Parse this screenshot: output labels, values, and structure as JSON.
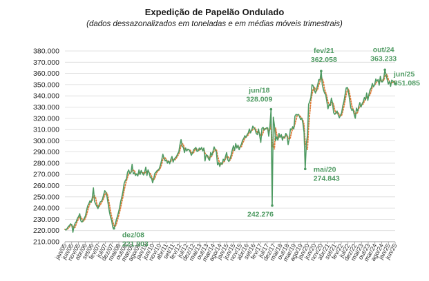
{
  "chart_data": {
    "type": "line",
    "title": "Expedição de Papelão Ondulado",
    "subtitle": "(dados dessazonalizados em toneladas e em médias móveis trimestrais)",
    "ylim": [
      210000,
      380000
    ],
    "yticks": [
      "210.000",
      "220.000",
      "230.000",
      "240.000",
      "250.000",
      "260.000",
      "270.000",
      "280.000",
      "290.000",
      "300.000",
      "310.000",
      "320.000",
      "330.000",
      "340.000",
      "350.000",
      "360.000",
      "370.000",
      "380.000"
    ],
    "grid": true,
    "legend": "none",
    "colors": {
      "series": "#4e9a62",
      "moving_average": "#e07b39",
      "annotation": "#4e9a62"
    },
    "x_labels": [
      "jan/05",
      "jun/05",
      "nov/05",
      "abr/06",
      "set/06",
      "fev/07",
      "jul/07",
      "dez/07",
      "mai/08",
      "out/08",
      "mar/09",
      "ago/09",
      "jan/10",
      "jun/10",
      "nov/10",
      "abr/11",
      "set/11",
      "fev/12",
      "jul/12",
      "dez/12",
      "mai/13",
      "out/13",
      "mar/14",
      "ago/14",
      "jan/15",
      "jun/15",
      "nov/15",
      "abr/16",
      "set/16",
      "fev/17",
      "jul/17",
      "dez/17",
      "mai/18",
      "out/18",
      "mar/19",
      "ago/19",
      "jan/20",
      "jun/20",
      "nov/20",
      "abr/21",
      "set/21",
      "fev/22",
      "jul/22",
      "dez/22",
      "mai/23",
      "out/23",
      "mar/24",
      "ago/24",
      "jan/25",
      "jun/25"
    ],
    "x_start": "jan/05",
    "x_end": "jun/25",
    "series": [
      {
        "values": [
          221000,
          220500,
          222000,
          223500,
          224500,
          226000,
          225000,
          218500,
          224000,
          226500,
          228000,
          231000,
          232500,
          235000,
          228500,
          227500,
          229000,
          231000,
          233000,
          238000,
          242000,
          244000,
          246500,
          245000,
          249000,
          258000,
          246000,
          243500,
          241500,
          239500,
          243000,
          245500,
          246000,
          248000,
          252000,
          255500,
          254000,
          250000,
          243500,
          237000,
          232000,
          229000,
          223000,
          221903,
          225000,
          229000,
          232500,
          236000,
          240500,
          246000,
          250000,
          255000,
          262000,
          264500,
          266000,
          272000,
          274000,
          270500,
          271500,
          279000,
          270500,
          271500,
          269000,
          270500,
          268500,
          274000,
          270000,
          273500,
          271000,
          269500,
          272000,
          276500,
          269000,
          274000,
          271500,
          267000,
          267000,
          262500,
          266500,
          271000,
          272000,
          273500,
          274000,
          275500,
          279000,
          283000,
          288000,
          284500,
          282000,
          283000,
          280000,
          282000,
          279500,
          283500,
          286000,
          281000,
          283500,
          285000,
          286000,
          288500,
          290000,
          296500,
          301000,
          295000,
          294000,
          289500,
          293500,
          291000,
          292500,
          292000,
          290000,
          287000,
          289000,
          292000,
          293000,
          294000,
          290500,
          291000,
          293500,
          292000,
          294000,
          291000,
          293500,
          282000,
          287500,
          287000,
          284000,
          282500,
          289500,
          287000,
          290500,
          294500,
          292000,
          290000,
          278500,
          280500,
          277000,
          280500,
          279000,
          283500,
          282000,
          286000,
          289500,
          283000,
          281500,
          284000,
          287500,
          292000,
          295500,
          291500,
          297500,
          293500,
          296000,
          292000,
          295000,
          297000,
          300500,
          302000,
          304500,
          303000,
          305500,
          307000,
          310500,
          307000,
          309500,
          313000,
          311500,
          310000,
          306500,
          305500,
          310500,
          304500,
          298500,
          311000,
          312000,
          309500,
          310500,
          311500,
          311500,
          304000,
          313000,
          328009,
          242276,
          321000,
          313500,
          300000,
          303500,
          300500,
          306500,
          303000,
          305500,
          300500,
          303500,
          303000,
          306500,
          305000,
          296500,
          301500,
          310500,
          310000,
          312500,
          310500,
          322000,
          323500,
          323000,
          323500,
          321500,
          319000,
          320000,
          315500,
          307500,
          274843,
          297000,
          305000,
          332500,
          335000,
          338500,
          350000,
          349000,
          345000,
          342500,
          346000,
          350000,
          354500,
          354000,
          362058,
          350000,
          345500,
          342500,
          341000,
          335000,
          328500,
          332500,
          331500,
          338000,
          333500,
          325000,
          323500,
          325000,
          326500,
          323000,
          320500,
          322500,
          325000,
          331000,
          335000,
          341000,
          347000,
          347500,
          343500,
          336500,
          329500,
          327000,
          328000,
          323500,
          320000,
          329000,
          326500,
          330500,
          334000,
          330000,
          333000,
          335000,
          338500,
          336500,
          342500,
          336000,
          341500,
          345500,
          347000,
          351000,
          348000,
          350000,
          355000,
          353000,
          354500,
          349500,
          357500,
          352500,
          352500,
          356000,
          363233,
          359000,
          354500,
          350500,
          353000,
          348500,
          354000,
          353000,
          352000,
          351085
        ],
        "labels": [
          {
            "x_label": "dez/08",
            "value_label": "221.903"
          },
          {
            "x_label": "jun/18",
            "value_label": "328.009"
          },
          {
            "x_label": "",
            "value_label": "242.276"
          },
          {
            "x_label": "mai/20",
            "value_label": "274.843"
          },
          {
            "x_label": "fev/21",
            "value_label": "362.058"
          },
          {
            "x_label": "out/24",
            "value_label": "363.233"
          },
          {
            "x_label": "jun/25",
            "value_label": "351.085"
          }
        ]
      }
    ]
  }
}
